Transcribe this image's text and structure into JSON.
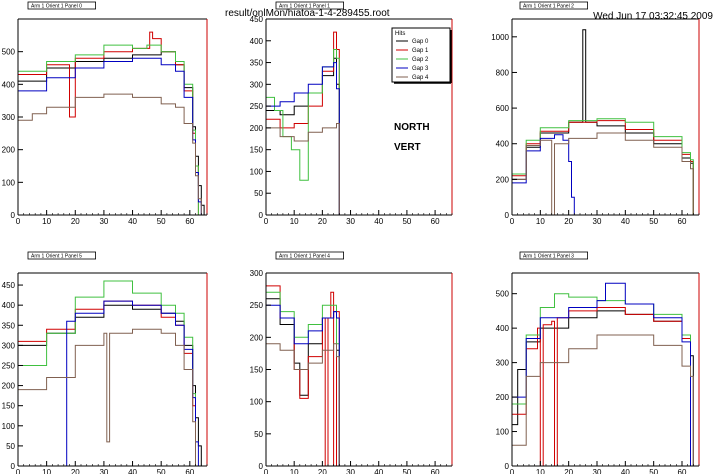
{
  "header": {
    "file_path": "result/onlMon/hiatoa-1-4-289455.root",
    "timestamp": "Wed Jun 17 03:32:45 2009"
  },
  "legend": {
    "title": "Hits",
    "entries": [
      "Gap 0",
      "Gap 1",
      "Gap 2",
      "Gap 3",
      "Gap 4"
    ]
  },
  "annotations": {
    "north": "NORTH",
    "vert": "VERT"
  },
  "colors": {
    "Gap 0": "#000000",
    "Gap 1": "#d00000",
    "Gap 2": "#40c040",
    "Gap 3": "#0000c0",
    "Gap 4": "#806050",
    "frame_right": "#cc0000"
  },
  "chart_data": [
    {
      "type": "line",
      "title": "Arm 1 Orient 1 Panel 0",
      "xlim": [
        0,
        66
      ],
      "ylim": [
        0,
        600
      ],
      "xticks": [
        0,
        10,
        20,
        30,
        40,
        50,
        60
      ],
      "yticks": [
        0,
        100,
        200,
        300,
        400,
        500
      ],
      "series": [
        {
          "name": "Gap 0",
          "x": [
            0,
            10,
            20,
            30,
            40,
            50,
            55,
            58,
            61,
            62,
            63,
            64,
            65
          ],
          "y": [
            410,
            450,
            470,
            480,
            490,
            500,
            460,
            390,
            270,
            180,
            90,
            30,
            0
          ]
        },
        {
          "name": "Gap 1",
          "x": [
            0,
            10,
            18,
            20,
            30,
            40,
            46,
            47,
            50,
            55,
            58,
            61,
            62,
            63
          ],
          "y": [
            430,
            460,
            300,
            480,
            500,
            510,
            560,
            540,
            500,
            460,
            380,
            250,
            150,
            0
          ]
        },
        {
          "name": "Gap 2",
          "x": [
            0,
            10,
            20,
            30,
            40,
            45,
            50,
            55,
            58,
            61,
            62,
            63
          ],
          "y": [
            440,
            470,
            490,
            520,
            510,
            520,
            500,
            470,
            400,
            260,
            150,
            0
          ]
        },
        {
          "name": "Gap 3",
          "x": [
            0,
            10,
            20,
            30,
            40,
            50,
            55,
            58,
            61,
            62,
            63,
            64
          ],
          "y": [
            380,
            420,
            450,
            470,
            480,
            460,
            440,
            360,
            230,
            130,
            40,
            0
          ]
        },
        {
          "name": "Gap 4",
          "x": [
            0,
            5,
            10,
            20,
            30,
            40,
            50,
            55,
            58,
            61,
            62,
            63,
            64
          ],
          "y": [
            290,
            310,
            330,
            360,
            370,
            360,
            340,
            330,
            280,
            220,
            120,
            50,
            0
          ]
        }
      ]
    },
    {
      "type": "line",
      "title": "Arm 1 Orient 1 Panel 1",
      "xlim": [
        0,
        66
      ],
      "ylim": [
        0,
        450
      ],
      "xticks": [
        0,
        10,
        20,
        30,
        40,
        50,
        60
      ],
      "yticks": [
        0,
        50,
        100,
        150,
        200,
        250,
        300,
        350,
        400,
        450
      ],
      "series": [
        {
          "name": "Gap 0",
          "x": [
            0,
            5,
            10,
            15,
            20,
            24,
            25,
            26
          ],
          "y": [
            240,
            230,
            250,
            280,
            320,
            360,
            300,
            0
          ]
        },
        {
          "name": "Gap 1",
          "x": [
            0,
            5,
            10,
            15,
            20,
            24,
            25,
            26
          ],
          "y": [
            220,
            200,
            210,
            250,
            330,
            420,
            380,
            0
          ]
        },
        {
          "name": "Gap 2",
          "x": [
            0,
            3,
            6,
            9,
            12,
            15,
            20,
            24,
            25,
            26
          ],
          "y": [
            270,
            240,
            180,
            150,
            80,
            280,
            340,
            380,
            360,
            0
          ]
        },
        {
          "name": "Gap 3",
          "x": [
            0,
            5,
            10,
            15,
            20,
            24,
            25,
            26
          ],
          "y": [
            250,
            260,
            280,
            300,
            340,
            350,
            290,
            0
          ]
        },
        {
          "name": "Gap 4",
          "x": [
            0,
            5,
            10,
            15,
            20,
            25,
            26
          ],
          "y": [
            200,
            180,
            170,
            190,
            200,
            210,
            0
          ]
        }
      ]
    },
    {
      "type": "line",
      "title": "Arm 1 Orient 1 Panel 2",
      "xlim": [
        0,
        66
      ],
      "ylim": [
        0,
        1100
      ],
      "xticks": [
        0,
        10,
        20,
        30,
        40,
        50,
        60
      ],
      "yticks": [
        0,
        200,
        400,
        600,
        800,
        1000
      ],
      "series": [
        {
          "name": "Gap 0",
          "x": [
            0,
            5,
            10,
            20,
            24,
            25,
            26,
            30,
            40,
            50,
            60,
            63,
            64
          ],
          "y": [
            200,
            380,
            460,
            520,
            520,
            1040,
            520,
            500,
            460,
            400,
            320,
            290,
            0
          ]
        },
        {
          "name": "Gap 1",
          "x": [
            0,
            5,
            10,
            20,
            30,
            40,
            50,
            60,
            63,
            64
          ],
          "y": [
            220,
            400,
            470,
            520,
            530,
            480,
            420,
            340,
            300,
            0
          ]
        },
        {
          "name": "Gap 2",
          "x": [
            0,
            5,
            10,
            20,
            30,
            40,
            50,
            60,
            63,
            64
          ],
          "y": [
            230,
            420,
            490,
            530,
            540,
            520,
            440,
            350,
            310,
            0
          ]
        },
        {
          "name": "Gap 3",
          "x": [
            0,
            5,
            10,
            15,
            18,
            20,
            21,
            22
          ],
          "y": [
            180,
            360,
            430,
            450,
            420,
            300,
            100,
            0
          ]
        },
        {
          "name": "Gap 4",
          "x": [
            0,
            5,
            10,
            14,
            15,
            20,
            30,
            40,
            50,
            60,
            63,
            64
          ],
          "y": [
            200,
            390,
            420,
            0,
            400,
            430,
            460,
            420,
            380,
            300,
            260,
            0
          ]
        }
      ]
    },
    {
      "type": "line",
      "title": "Arm 1 Orient 1 Panel 5",
      "xlim": [
        0,
        66
      ],
      "ylim": [
        0,
        480
      ],
      "xticks": [
        0,
        10,
        20,
        30,
        40,
        50,
        60
      ],
      "yticks": [
        0,
        50,
        100,
        150,
        200,
        250,
        300,
        350,
        400,
        450
      ],
      "series": [
        {
          "name": "Gap 0",
          "x": [
            0,
            10,
            20,
            30,
            40,
            50,
            55,
            58,
            61,
            62,
            63,
            64
          ],
          "y": [
            300,
            330,
            370,
            400,
            390,
            380,
            360,
            300,
            200,
            120,
            50,
            0
          ]
        },
        {
          "name": "Gap 1",
          "x": [
            0,
            10,
            20,
            30,
            40,
            50,
            55,
            58,
            61,
            62
          ],
          "y": [
            310,
            340,
            390,
            410,
            400,
            370,
            350,
            280,
            150,
            0
          ]
        },
        {
          "name": "Gap 2",
          "x": [
            0,
            10,
            20,
            30,
            40,
            50,
            55,
            58,
            61,
            62
          ],
          "y": [
            250,
            330,
            420,
            460,
            430,
            400,
            380,
            320,
            180,
            0
          ]
        },
        {
          "name": "Gap 3",
          "x": [
            16,
            17,
            20,
            30,
            40,
            50,
            55,
            58,
            61,
            62,
            63
          ],
          "y": [
            0,
            360,
            380,
            410,
            400,
            380,
            350,
            290,
            170,
            60,
            0
          ]
        },
        {
          "name": "Gap 4",
          "x": [
            0,
            10,
            20,
            30,
            31,
            32,
            40,
            50,
            55,
            58,
            61,
            62
          ],
          "y": [
            190,
            220,
            300,
            330,
            60,
            330,
            340,
            330,
            300,
            240,
            110,
            0
          ]
        }
      ]
    },
    {
      "type": "line",
      "title": "Arm 1 Orient 1 Panel 4",
      "xlim": [
        0,
        66
      ],
      "ylim": [
        0,
        300
      ],
      "xticks": [
        0,
        10,
        20,
        30,
        40,
        50,
        60
      ],
      "yticks": [
        0,
        50,
        100,
        150,
        200,
        250,
        300
      ],
      "series": [
        {
          "name": "Gap 0",
          "x": [
            0,
            5,
            10,
            12,
            15,
            20,
            24,
            25,
            26
          ],
          "y": [
            260,
            220,
            160,
            110,
            190,
            230,
            240,
            180,
            0
          ]
        },
        {
          "name": "Gap 1",
          "x": [
            0,
            5,
            10,
            12,
            15,
            20,
            21,
            22,
            23,
            24,
            25,
            26
          ],
          "y": [
            280,
            230,
            150,
            105,
            170,
            230,
            0,
            230,
            270,
            0,
            240,
            0
          ]
        },
        {
          "name": "Gap 2",
          "x": [
            0,
            5,
            10,
            15,
            20,
            24,
            25,
            26
          ],
          "y": [
            270,
            240,
            200,
            220,
            250,
            250,
            190,
            0
          ]
        },
        {
          "name": "Gap 3",
          "x": [
            0,
            5,
            10,
            15,
            20,
            24,
            25,
            26
          ],
          "y": [
            250,
            230,
            190,
            210,
            230,
            240,
            230,
            0
          ]
        },
        {
          "name": "Gap 4",
          "x": [
            0,
            5,
            10,
            15,
            20,
            24,
            25,
            26
          ],
          "y": [
            190,
            180,
            150,
            160,
            180,
            190,
            170,
            0
          ]
        }
      ]
    },
    {
      "type": "line",
      "title": "Arm 1 Orient 1 Panel 3",
      "xlim": [
        0,
        66
      ],
      "ylim": [
        0,
        560
      ],
      "xticks": [
        0,
        10,
        20,
        30,
        40,
        50,
        60
      ],
      "yticks": [
        0,
        100,
        200,
        300,
        400,
        500
      ],
      "series": [
        {
          "name": "Gap 0",
          "x": [
            0,
            2,
            5,
            10,
            20,
            30,
            40,
            50,
            60,
            63,
            64
          ],
          "y": [
            120,
            280,
            360,
            400,
            430,
            450,
            440,
            420,
            380,
            320,
            0
          ]
        },
        {
          "name": "Gap 1",
          "x": [
            0,
            5,
            9,
            10,
            11,
            14,
            15,
            16,
            20,
            30,
            40,
            50,
            60,
            63
          ],
          "y": [
            150,
            340,
            400,
            0,
            410,
            420,
            0,
            430,
            450,
            460,
            440,
            420,
            370,
            0
          ]
        },
        {
          "name": "Gap 2",
          "x": [
            0,
            5,
            10,
            15,
            20,
            30,
            40,
            50,
            60,
            63
          ],
          "y": [
            180,
            380,
            460,
            500,
            490,
            480,
            470,
            440,
            380,
            0
          ]
        },
        {
          "name": "Gap 3",
          "x": [
            0,
            5,
            10,
            20,
            30,
            33,
            40,
            50,
            60,
            63
          ],
          "y": [
            200,
            370,
            430,
            460,
            480,
            530,
            470,
            430,
            360,
            0
          ]
        },
        {
          "name": "Gap 4",
          "x": [
            0,
            5,
            10,
            20,
            30,
            40,
            50,
            60,
            63,
            64
          ],
          "y": [
            60,
            260,
            300,
            340,
            380,
            380,
            350,
            290,
            260,
            0
          ]
        }
      ]
    }
  ]
}
